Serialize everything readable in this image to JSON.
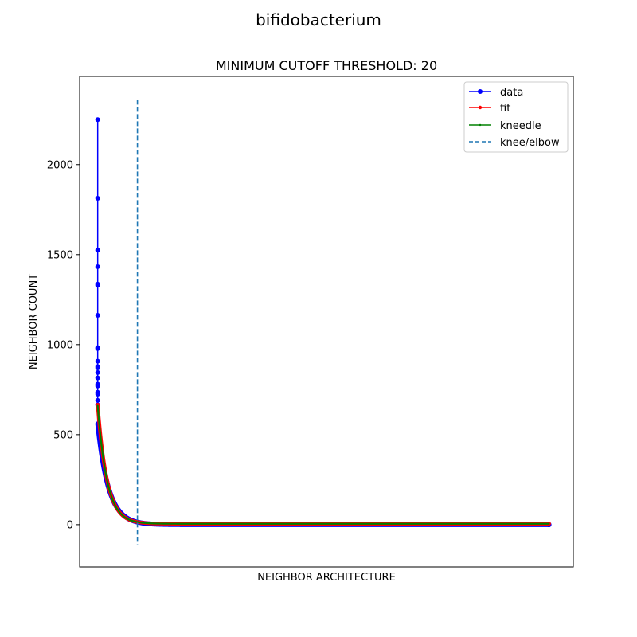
{
  "chart_data": {
    "type": "line",
    "suptitle": "bifidobacterium",
    "title": "MINIMUM CUTOFF THRESHOLD: 20",
    "xlabel": "NEIGHBOR ARCHITECTURE",
    "ylabel": "NEIGHBOR COUNT",
    "ylim": [
      -235,
      2490
    ],
    "xlim": [
      -150,
      3950
    ],
    "yticks": [
      0,
      500,
      1000,
      1500,
      2000
    ],
    "ytick_labels": [
      "0",
      "500",
      "1000",
      "1500",
      "2000"
    ],
    "xticks_visible": false,
    "grid": false,
    "legend_position": "top-right",
    "knee_x": 330,
    "knee_line_ylim": [
      -110,
      2360
    ],
    "series": [
      {
        "name": "data",
        "color": "#0000ff",
        "marker": "circle",
        "spike_values": [
          2250,
          1813,
          1525,
          1433,
          1336,
          1330,
          1163,
          983,
          978,
          908,
          878,
          871,
          845,
          815,
          780,
          770,
          735,
          725,
          690,
          665
        ],
        "decay": {
          "start": 560,
          "x_end": 3750,
          "rate": 90,
          "tail_end": 0
        }
      },
      {
        "name": "fit",
        "color": "#ff0000",
        "marker": "point",
        "decay": {
          "start": 665,
          "x_end": 3750,
          "rate": 78,
          "tail_end": 5
        }
      },
      {
        "name": "kneedle",
        "color": "#008000",
        "marker": "pixel",
        "decay": {
          "start": 660,
          "x_end": 3750,
          "rate": 78,
          "tail_end": 5
        }
      },
      {
        "name": "knee/elbow",
        "color": "#1f77b4",
        "style": "dashed"
      }
    ]
  }
}
